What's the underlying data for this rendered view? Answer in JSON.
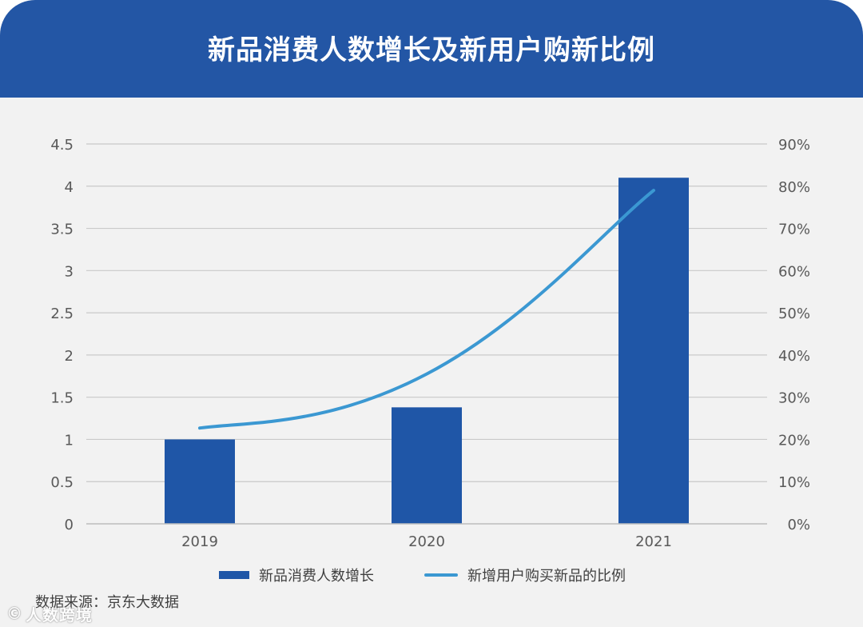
{
  "header": {
    "title": "新品消费人数增长及新用户购新比例"
  },
  "source": {
    "text": "数据来源：京东大数据"
  },
  "watermark": {
    "icon": "©",
    "text": "人数跨境"
  },
  "chart_data": {
    "type": "bar",
    "categories": [
      "2019",
      "2020",
      "2021"
    ],
    "series": [
      {
        "name": "新品消费人数增长",
        "kind": "bar",
        "axis": "left",
        "values": [
          1.0,
          1.38,
          4.1
        ],
        "color": "#1f56a7"
      },
      {
        "name": "新增用户购买新品的比例",
        "kind": "line",
        "axis": "right",
        "values": [
          22.7,
          35.5,
          79.0
        ],
        "color": "#3b98d2",
        "smooth": true
      }
    ],
    "y_left": {
      "min": 0,
      "max": 4.5,
      "step": 0.5,
      "ticks": [
        "0",
        "0.5",
        "1",
        "1.5",
        "2",
        "2.5",
        "3",
        "3.5",
        "4",
        "4.5"
      ]
    },
    "y_right": {
      "min": 0,
      "max": 90,
      "step": 10,
      "ticks": [
        "0%",
        "10%",
        "20%",
        "30%",
        "40%",
        "50%",
        "60%",
        "70%",
        "80%",
        "90%"
      ]
    },
    "grid": true,
    "legend_position": "bottom"
  }
}
